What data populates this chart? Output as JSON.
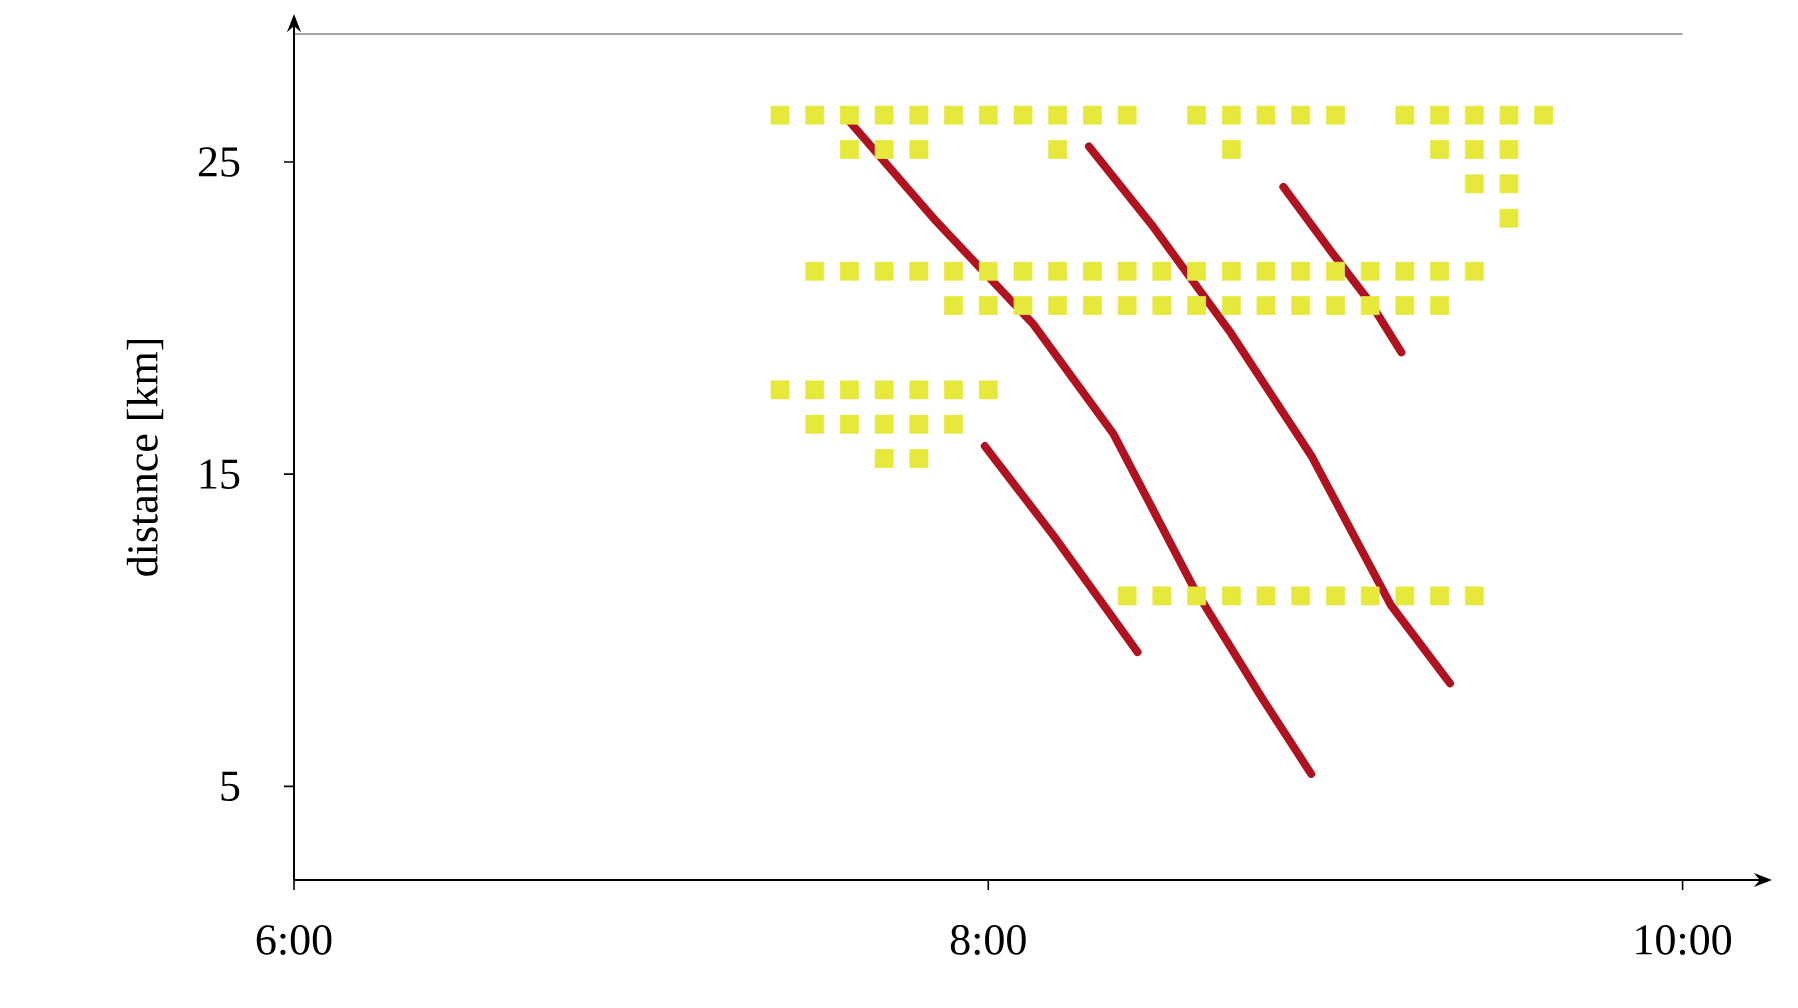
{
  "chart_data": {
    "type": "line",
    "ylabel": "distance [km]",
    "xlim": [
      6,
      10.2
    ],
    "ylim": [
      2,
      29.1
    ],
    "xticks": [
      {
        "value": 6,
        "label": "6:00"
      },
      {
        "value": 8,
        "label": "8:00"
      },
      {
        "value": 10,
        "label": "10:00"
      }
    ],
    "yticks": [
      5,
      15,
      25
    ],
    "series": [
      {
        "type": "scatter",
        "marker": "square",
        "color": "#e6e83c",
        "x": [
          7.4,
          7.5,
          7.6,
          7.7,
          7.8,
          7.9,
          8.0,
          7.6,
          7.7,
          7.8
        ],
        "values": [
          26.5,
          26.5,
          26.5,
          26.5,
          26.5,
          26.5,
          26.5,
          25.4,
          25.4,
          25.4
        ]
      },
      {
        "type": "scatter",
        "marker": "square",
        "color": "#e6e83c",
        "x": [
          8.1,
          8.2,
          8.3,
          8.4,
          8.2
        ],
        "values": [
          26.5,
          26.5,
          26.5,
          26.5,
          25.4
        ]
      },
      {
        "type": "scatter",
        "marker": "square",
        "color": "#e6e83c",
        "x": [
          8.6,
          8.7,
          8.8,
          8.9,
          9.0,
          8.7
        ],
        "values": [
          26.5,
          26.5,
          26.5,
          26.5,
          26.5,
          25.4
        ]
      },
      {
        "type": "scatter",
        "marker": "square",
        "color": "#e6e83c",
        "x": [
          9.2,
          9.3,
          9.4,
          9.5,
          9.6,
          9.3,
          9.4,
          9.5,
          9.4,
          9.5,
          9.5
        ],
        "values": [
          26.5,
          26.5,
          26.5,
          26.5,
          26.5,
          25.4,
          25.4,
          25.4,
          24.3,
          24.3,
          23.2
        ]
      },
      {
        "type": "scatter",
        "marker": "square",
        "color": "#e6e83c",
        "x": [
          7.5,
          7.6,
          7.7,
          7.8,
          7.9,
          8.0,
          8.1,
          8.2,
          8.3,
          8.4,
          8.5,
          8.6,
          8.7,
          8.8,
          8.9,
          9.0,
          9.1,
          9.2,
          9.3,
          9.4,
          7.9,
          8.0,
          8.1,
          8.2,
          8.3,
          8.4,
          8.5,
          8.6,
          8.7,
          8.8,
          8.9,
          9.0,
          9.1,
          9.2,
          9.3
        ],
        "values": [
          21.5,
          21.5,
          21.5,
          21.5,
          21.5,
          21.5,
          21.5,
          21.5,
          21.5,
          21.5,
          21.5,
          21.5,
          21.5,
          21.5,
          21.5,
          21.5,
          21.5,
          21.5,
          21.5,
          21.5,
          20.4,
          20.4,
          20.4,
          20.4,
          20.4,
          20.4,
          20.4,
          20.4,
          20.4,
          20.4,
          20.4,
          20.4,
          20.4,
          20.4,
          20.4
        ]
      },
      {
        "type": "scatter",
        "marker": "square",
        "color": "#e6e83c",
        "x": [
          7.4,
          7.5,
          7.6,
          7.7,
          7.8,
          7.9,
          8.0,
          7.5,
          7.6,
          7.7,
          7.8,
          7.9,
          7.7,
          7.8
        ],
        "values": [
          17.7,
          17.7,
          17.7,
          17.7,
          17.7,
          17.7,
          17.7,
          16.6,
          16.6,
          16.6,
          16.6,
          16.6,
          15.5,
          15.5
        ]
      },
      {
        "type": "scatter",
        "marker": "square",
        "color": "#e6e83c",
        "x": [
          8.4,
          8.5,
          8.6,
          8.7,
          8.8,
          8.9,
          9.0,
          9.1,
          9.2,
          9.3,
          9.4
        ],
        "values": [
          11.1,
          11.1,
          11.1,
          11.1,
          11.1,
          11.1,
          11.1,
          11.1,
          11.1,
          11.1,
          11.1
        ]
      },
      {
        "color": "#b0121f",
        "x": [
          7.6,
          7.85,
          8.13,
          8.36,
          8.59,
          8.79,
          8.93
        ],
        "values": [
          26.3,
          23.1,
          19.8,
          16.3,
          11.4,
          7.8,
          5.4
        ]
      },
      {
        "color": "#b0121f",
        "x": [
          8.29,
          8.47,
          8.7,
          8.93,
          9.16,
          9.33
        ],
        "values": [
          25.5,
          23.0,
          19.5,
          15.6,
          10.8,
          8.3
        ]
      },
      {
        "color": "#b0121f",
        "x": [
          8.85,
          8.99,
          9.1,
          9.19
        ],
        "values": [
          24.2,
          22.1,
          20.5,
          18.9
        ]
      },
      {
        "color": "#b0121f",
        "x": [
          7.99,
          8.19,
          8.43
        ],
        "values": [
          15.9,
          13.0,
          9.3
        ]
      }
    ]
  }
}
